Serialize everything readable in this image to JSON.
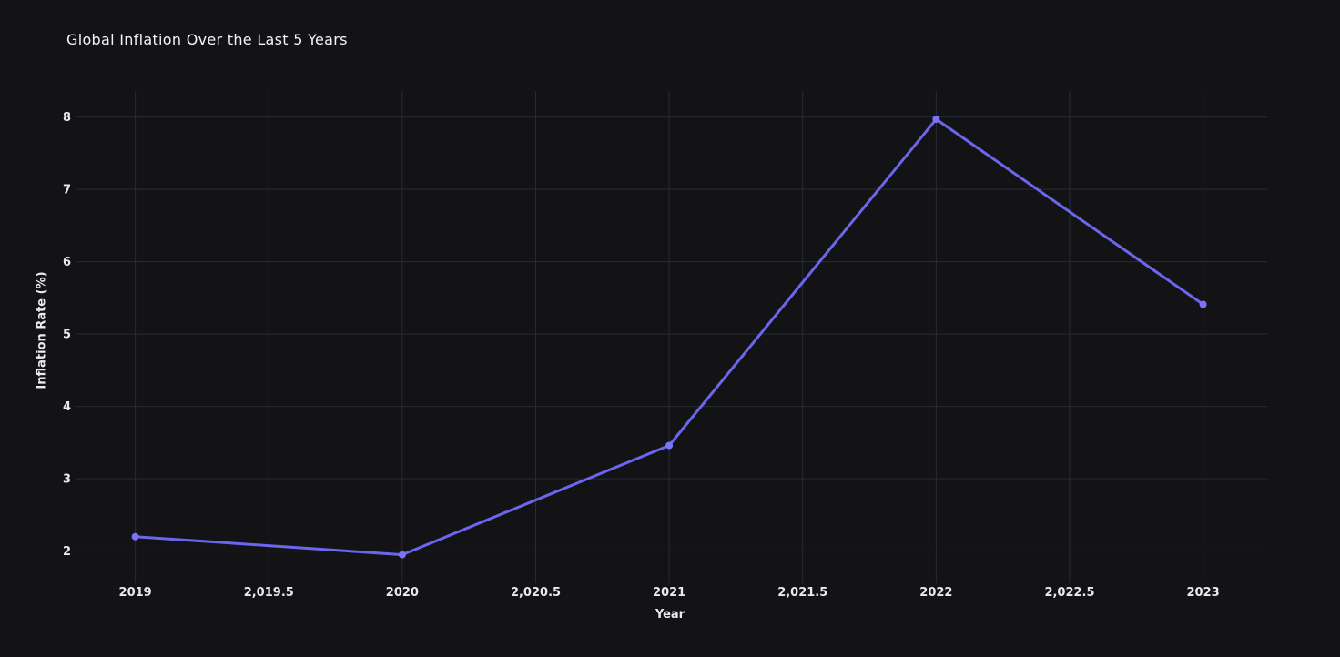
{
  "chart_data": {
    "type": "line",
    "title": "Global Inflation Over the Last 5 Years",
    "xlabel": "Year",
    "ylabel": "Inflation Rate (%)",
    "x": [
      2019,
      2020,
      2021,
      2022,
      2023
    ],
    "series": [
      {
        "name": "Inflation Rate (%)",
        "values": [
          2.2,
          1.95,
          3.46,
          7.97,
          5.41
        ]
      }
    ],
    "xlim": [
      2018.8,
      2023.24
    ],
    "ylim": [
      1.63,
      8.36
    ],
    "x_tick_values": [
      2019,
      2019.5,
      2020,
      2020.5,
      2021,
      2021.5,
      2022,
      2022.5,
      2023
    ],
    "x_tick_labels": [
      "2019",
      "2,019.5",
      "2020",
      "2,020.5",
      "2021",
      "2,021.5",
      "2022",
      "2,022.5",
      "2023"
    ],
    "y_tick_values": [
      2,
      3,
      4,
      5,
      6,
      7,
      8
    ],
    "y_tick_labels": [
      "2",
      "3",
      "4",
      "5",
      "6",
      "7",
      "8"
    ],
    "grid": true,
    "legend": "none",
    "markers": true,
    "colors": {
      "line": "#6c66ee",
      "point": "#7b74f8",
      "grid": "#262c38",
      "tick_text": "#e9e9ee",
      "title_text": "#f4f4f6",
      "background": "#131316"
    }
  }
}
